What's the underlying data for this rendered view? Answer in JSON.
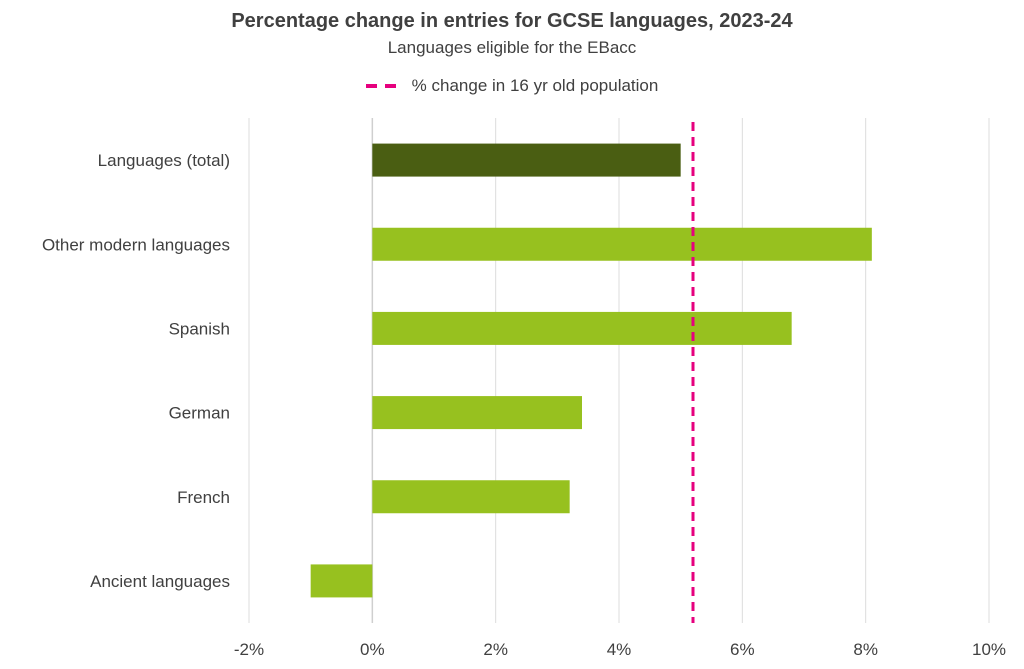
{
  "chart_data": {
    "type": "bar",
    "orientation": "horizontal",
    "title": "Percentage change in entries for GCSE languages, 2023-24",
    "subtitle": "Languages eligible for the EBacc",
    "categories": [
      "Languages (total)",
      "Other modern languages",
      "Spanish",
      "German",
      "French",
      "Ancient languages"
    ],
    "values": [
      5.0,
      8.1,
      6.8,
      3.4,
      3.2,
      -1.0
    ],
    "bar_colors": [
      "#4a5e12",
      "#97c11f",
      "#97c11f",
      "#97c11f",
      "#97c11f",
      "#97c11f"
    ],
    "xlim": [
      -2,
      10
    ],
    "xticks": [
      -2,
      0,
      2,
      4,
      6,
      8,
      10
    ],
    "xtick_labels": [
      "-2%",
      "0%",
      "2%",
      "4%",
      "6%",
      "8%",
      "10%"
    ],
    "reference_line": {
      "value": 5.2,
      "label": "% change in 16 yr old population",
      "color": "#e6007e",
      "style": "dashed"
    },
    "grid": true,
    "legend_position": "top"
  }
}
